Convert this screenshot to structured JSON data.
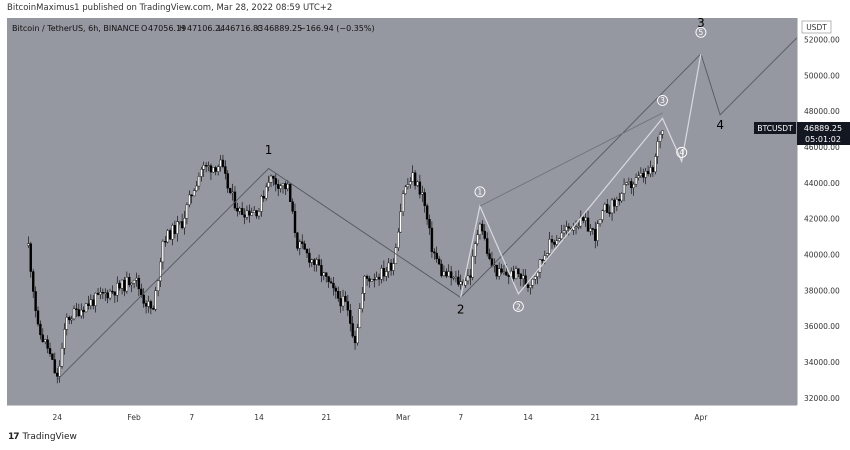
{
  "header": {
    "publish_text": "BitcoinMaximus1 published on TradingView.com, Mar 28, 2022 08:59 UTC+2"
  },
  "legend": {
    "symbol": "Bitcoin / TetherUS, 6h, BINANCE",
    "open_label": "O",
    "open": "47056.19",
    "high_label": "H",
    "high": "47106.24",
    "low_label": "L",
    "low": "46716.83",
    "close_label": "C",
    "close": "46889.25",
    "change": "−166.94 (−0.35%)"
  },
  "price_axis": {
    "currency": "USDT",
    "ticks": [
      "52000.00",
      "50000.00",
      "48000.00",
      "46000.00",
      "44000.00",
      "42000.00",
      "40000.00",
      "38000.00",
      "36000.00",
      "34000.00",
      "32000.00"
    ],
    "last_symbol": "BTCUSDT",
    "last_price": "46889.25",
    "countdown": "05:01:02"
  },
  "time_axis": {
    "ticks": [
      "24",
      "Feb",
      "7",
      "14",
      "21",
      "Mar",
      "7",
      "14",
      "21",
      "Apr"
    ]
  },
  "footer": {
    "logo_text": "17",
    "brand": "TradingView"
  },
  "colors": {
    "background": "#9598a1",
    "up_candle": "#ffffff",
    "down_candle": "#000000",
    "wave_line": "#d9dadf",
    "channel_line": "#6f727a"
  },
  "chart_data": {
    "type": "candlestick",
    "interval": "6h",
    "ylim": [
      31600,
      53200
    ],
    "x_start": "2022-01-22",
    "x_end": "2022-04-11",
    "ohlc_anchors": [
      {
        "date": "2022-01-21",
        "price": 40500
      },
      {
        "date": "2022-01-22",
        "price": 35800
      },
      {
        "date": "2022-01-23",
        "price": 34800
      },
      {
        "date": "2022-01-24",
        "price": 33000
      },
      {
        "date": "2022-01-25",
        "price": 36400
      },
      {
        "date": "2022-01-27",
        "price": 37200
      },
      {
        "date": "2022-01-29",
        "price": 37800
      },
      {
        "date": "2022-01-31",
        "price": 38300
      },
      {
        "date": "2022-02-01",
        "price": 38800
      },
      {
        "date": "2022-02-02",
        "price": 37500
      },
      {
        "date": "2022-02-03",
        "price": 36800
      },
      {
        "date": "2022-02-04",
        "price": 40800
      },
      {
        "date": "2022-02-06",
        "price": 41800
      },
      {
        "date": "2022-02-07",
        "price": 43400
      },
      {
        "date": "2022-02-08",
        "price": 44800
      },
      {
        "date": "2022-02-10",
        "price": 45000
      },
      {
        "date": "2022-02-11",
        "price": 43400
      },
      {
        "date": "2022-02-12",
        "price": 42400
      },
      {
        "date": "2022-02-14",
        "price": 42500
      },
      {
        "date": "2022-02-15",
        "price": 44300
      },
      {
        "date": "2022-02-17",
        "price": 43700
      },
      {
        "date": "2022-02-18",
        "price": 40600
      },
      {
        "date": "2022-02-20",
        "price": 39400
      },
      {
        "date": "2022-02-22",
        "price": 37700
      },
      {
        "date": "2022-02-23",
        "price": 37200
      },
      {
        "date": "2022-02-24",
        "price": 35300
      },
      {
        "date": "2022-02-25",
        "price": 38600
      },
      {
        "date": "2022-02-27",
        "price": 39000
      },
      {
        "date": "2022-02-28",
        "price": 39600
      },
      {
        "date": "2022-03-01",
        "price": 43500
      },
      {
        "date": "2022-03-02",
        "price": 44300
      },
      {
        "date": "2022-03-03",
        "price": 43400
      },
      {
        "date": "2022-03-04",
        "price": 40400
      },
      {
        "date": "2022-03-05",
        "price": 39000
      },
      {
        "date": "2022-03-07",
        "price": 38400
      },
      {
        "date": "2022-03-08",
        "price": 38900
      },
      {
        "date": "2022-03-09",
        "price": 42000
      },
      {
        "date": "2022-03-10",
        "price": 39600
      },
      {
        "date": "2022-03-11",
        "price": 38900
      },
      {
        "date": "2022-03-13",
        "price": 38900
      },
      {
        "date": "2022-03-14",
        "price": 38300
      },
      {
        "date": "2022-03-15",
        "price": 39200
      },
      {
        "date": "2022-03-16",
        "price": 40400
      },
      {
        "date": "2022-03-17",
        "price": 40900
      },
      {
        "date": "2022-03-19",
        "price": 41800
      },
      {
        "date": "2022-03-20",
        "price": 41700
      },
      {
        "date": "2022-03-21",
        "price": 41100
      },
      {
        "date": "2022-03-22",
        "price": 42500
      },
      {
        "date": "2022-03-23",
        "price": 42800
      },
      {
        "date": "2022-03-24",
        "price": 43600
      },
      {
        "date": "2022-03-26",
        "price": 44400
      },
      {
        "date": "2022-03-27",
        "price": 44600
      },
      {
        "date": "2022-03-27.75",
        "price": 46900
      },
      {
        "date": "2022-03-28",
        "price": 46889
      }
    ],
    "major_wave_labels": [
      {
        "label": "1",
        "date": "2022-02-15",
        "price": 45600
      },
      {
        "label": "2",
        "date": "2022-03-07",
        "price": 36700
      },
      {
        "label": "3",
        "date": "2022-04-01",
        "price": 52700
      },
      {
        "label": "4",
        "date": "2022-04-03",
        "price": 47000
      }
    ],
    "minor_wave_labels": [
      {
        "label": "1",
        "date": "2022-03-09",
        "price": 43500
      },
      {
        "label": "2",
        "date": "2022-03-13",
        "price": 37100
      },
      {
        "label": "3",
        "date": "2022-03-28",
        "price": 48600
      },
      {
        "label": "4",
        "date": "2022-03-30",
        "price": 45700
      },
      {
        "label": "5",
        "date": "2022-04-01",
        "price": 52400
      }
    ],
    "major_wave_path": [
      {
        "date": "2022-01-24",
        "price": 33000
      },
      {
        "date": "2022-02-15",
        "price": 44800
      },
      {
        "date": "2022-03-07",
        "price": 37600
      },
      {
        "date": "2022-04-01",
        "price": 51200
      },
      {
        "date": "2022-04-03",
        "price": 47800
      },
      {
        "date": "2022-04-11",
        "price": 52100
      }
    ],
    "minor_wave_path": [
      {
        "date": "2022-03-07",
        "price": 37600
      },
      {
        "date": "2022-03-09",
        "price": 42700
      },
      {
        "date": "2022-03-13",
        "price": 37800
      },
      {
        "date": "2022-03-28",
        "price": 47600
      },
      {
        "date": "2022-03-30",
        "price": 45200
      },
      {
        "date": "2022-04-01",
        "price": 51200
      }
    ],
    "channel_line": [
      {
        "date": "2022-03-09",
        "price": 42700
      },
      {
        "date": "2022-03-28",
        "price": 47900
      }
    ]
  }
}
